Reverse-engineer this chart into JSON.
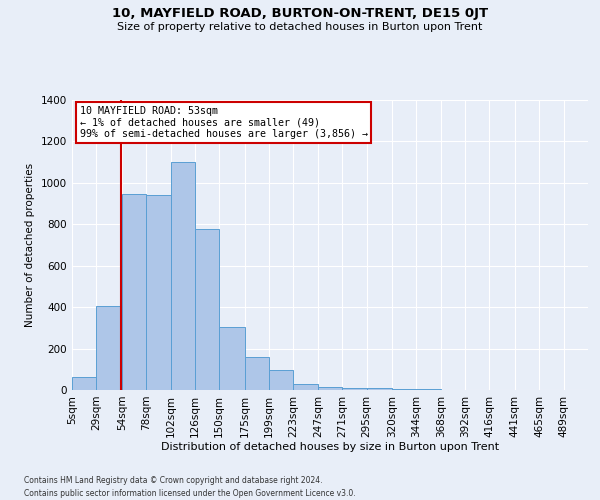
{
  "title": "10, MAYFIELD ROAD, BURTON-ON-TRENT, DE15 0JT",
  "subtitle": "Size of property relative to detached houses in Burton upon Trent",
  "xlabel": "Distribution of detached houses by size in Burton upon Trent",
  "ylabel": "Number of detached properties",
  "footnote1": "Contains HM Land Registry data © Crown copyright and database right 2024.",
  "footnote2": "Contains public sector information licensed under the Open Government Licence v3.0.",
  "annotation_title": "10 MAYFIELD ROAD: 53sqm",
  "annotation_line1": "← 1% of detached houses are smaller (49)",
  "annotation_line2": "99% of semi-detached houses are larger (3,856) →",
  "bar_color": "#aec6e8",
  "bar_edge_color": "#5a9fd4",
  "bg_color": "#e8eef8",
  "annotation_box_color": "#ffffff",
  "annotation_box_edge": "#cc0000",
  "vline_color": "#cc0000",
  "vline_x": 53,
  "categories": [
    "5sqm",
    "29sqm",
    "54sqm",
    "78sqm",
    "102sqm",
    "126sqm",
    "150sqm",
    "175sqm",
    "199sqm",
    "223sqm",
    "247sqm",
    "271sqm",
    "295sqm",
    "320sqm",
    "344sqm",
    "368sqm",
    "392sqm",
    "416sqm",
    "441sqm",
    "465sqm",
    "489sqm"
  ],
  "bin_edges": [
    5,
    29,
    54,
    78,
    102,
    126,
    150,
    175,
    199,
    223,
    247,
    271,
    295,
    320,
    344,
    368,
    392,
    416,
    441,
    465,
    489,
    513
  ],
  "values": [
    65,
    405,
    945,
    940,
    1100,
    775,
    305,
    160,
    95,
    30,
    15,
    12,
    10,
    5,
    3,
    1,
    1,
    0,
    0,
    0,
    0
  ],
  "ylim": [
    0,
    1400
  ],
  "yticks": [
    0,
    200,
    400,
    600,
    800,
    1000,
    1200,
    1400
  ]
}
